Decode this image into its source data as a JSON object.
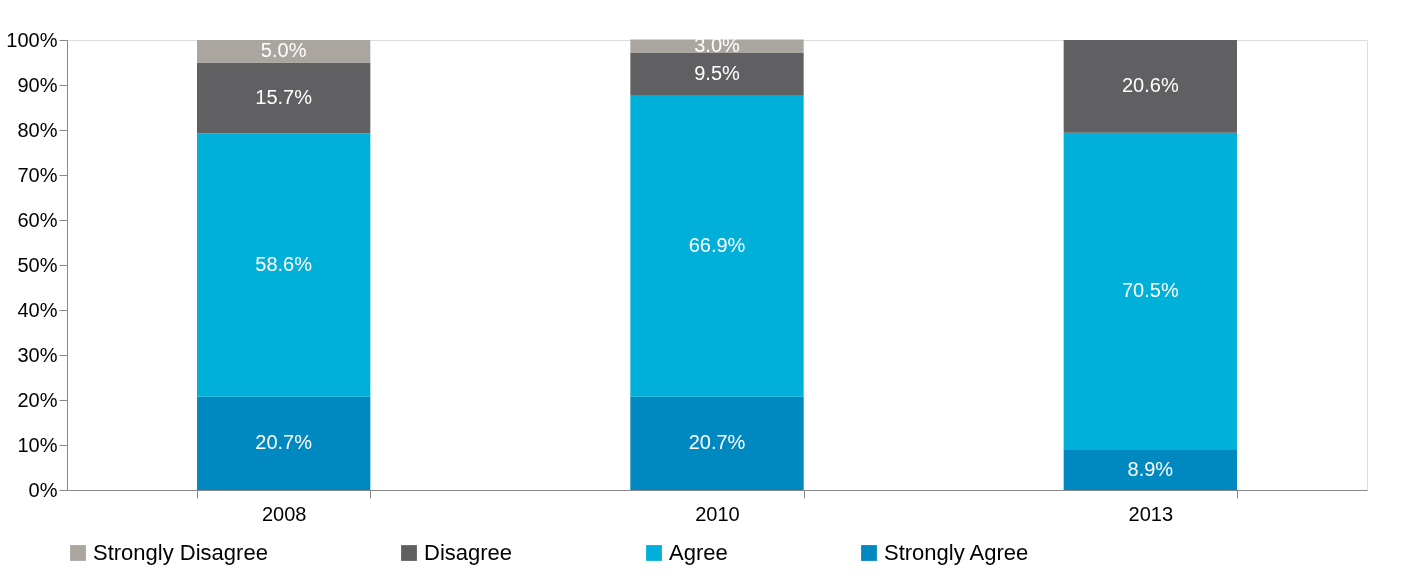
{
  "chart_data": {
    "type": "bar",
    "stacked": true,
    "categories": [
      "2008",
      "2010",
      "2013"
    ],
    "series": [
      {
        "name": "Strongly Agree",
        "color": "#0088c0",
        "values": [
          20.7,
          20.7,
          8.9
        ],
        "value_labels": [
          "20.7%",
          "20.7%",
          "8.9%"
        ]
      },
      {
        "name": "Agree",
        "color": "#00b0d8",
        "values": [
          58.6,
          66.9,
          70.5
        ],
        "value_labels": [
          "58.6%",
          "66.9%",
          "70.5%"
        ]
      },
      {
        "name": "Disagree",
        "color": "#606062",
        "values": [
          15.7,
          9.5,
          20.6
        ],
        "value_labels": [
          "15.7%",
          "9.5%",
          "20.6%"
        ]
      },
      {
        "name": "Strongly Disagree",
        "color": "#aba5a0",
        "values": [
          5.0,
          3.0,
          null
        ],
        "value_labels": [
          "5.0%",
          "3.0%",
          null
        ]
      }
    ],
    "ylim": [
      0,
      100
    ],
    "yticks": [
      {
        "value": 0,
        "label": "0%"
      },
      {
        "value": 10,
        "label": "10%"
      },
      {
        "value": 20,
        "label": "20%"
      },
      {
        "value": 30,
        "label": "30%"
      },
      {
        "value": 40,
        "label": "40%"
      },
      {
        "value": 50,
        "label": "50%"
      },
      {
        "value": 60,
        "label": "60%"
      },
      {
        "value": 70,
        "label": "70%"
      },
      {
        "value": 80,
        "label": "80%"
      },
      {
        "value": 90,
        "label": "90%"
      },
      {
        "value": 100,
        "label": "100%"
      }
    ],
    "grid": false,
    "legend": "bottom"
  }
}
